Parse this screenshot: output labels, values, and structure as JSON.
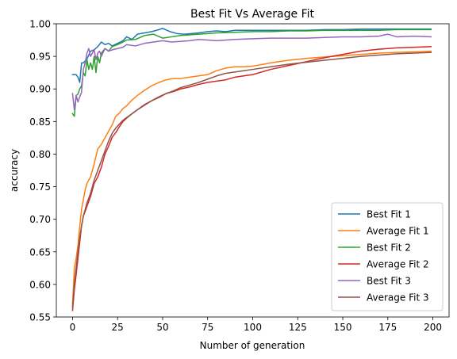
{
  "chart_data": {
    "type": "line",
    "title": "Best Fit Vs Average Fit",
    "xlabel": "Number of generation",
    "ylabel": "accuracy",
    "xlim": [
      -9,
      209
    ],
    "ylim": [
      0.55,
      1.0
    ],
    "xticks": [
      0,
      25,
      50,
      75,
      100,
      125,
      150,
      175,
      200
    ],
    "xtick_labels": [
      "0",
      "25",
      "50",
      "75",
      "100",
      "125",
      "150",
      "175",
      "200"
    ],
    "yticks": [
      0.55,
      0.6,
      0.65,
      0.7,
      0.75,
      0.8,
      0.85,
      0.9,
      0.95,
      1.0
    ],
    "ytick_labels": [
      "0.55",
      "0.60",
      "0.65",
      "0.70",
      "0.75",
      "0.80",
      "0.85",
      "0.90",
      "0.95",
      "1.00"
    ],
    "grid": false,
    "legend_position": "lower-right",
    "series": [
      {
        "name": "Best Fit 1",
        "color": "#1f77b4",
        "x": [
          0,
          1,
          2,
          3,
          4,
          5,
          6,
          8,
          10,
          12,
          14,
          16,
          18,
          20,
          22,
          25,
          28,
          30,
          33,
          36,
          40,
          44,
          48,
          50,
          54,
          58,
          62,
          66,
          70,
          75,
          80,
          85,
          90,
          100,
          110,
          120,
          130,
          140,
          150,
          160,
          170,
          180,
          190,
          199
        ],
        "y": [
          0.922,
          0.922,
          0.922,
          0.918,
          0.91,
          0.94,
          0.94,
          0.946,
          0.958,
          0.96,
          0.965,
          0.972,
          0.968,
          0.97,
          0.966,
          0.97,
          0.974,
          0.98,
          0.976,
          0.984,
          0.986,
          0.988,
          0.991,
          0.993,
          0.988,
          0.985,
          0.984,
          0.985,
          0.986,
          0.988,
          0.989,
          0.988,
          0.99,
          0.99,
          0.99,
          0.99,
          0.99,
          0.991,
          0.991,
          0.992,
          0.992,
          0.992,
          0.992,
          0.992
        ]
      },
      {
        "name": "Average Fit 1",
        "color": "#ff7f0e",
        "x": [
          0,
          1,
          2,
          3,
          4,
          5,
          6,
          7,
          8,
          10,
          12,
          14,
          16,
          18,
          20,
          22,
          24,
          26,
          28,
          30,
          33,
          36,
          40,
          44,
          48,
          52,
          56,
          60,
          65,
          70,
          75,
          80,
          85,
          90,
          95,
          100,
          110,
          120,
          130,
          140,
          150,
          160,
          170,
          180,
          190,
          199
        ],
        "y": [
          0.57,
          0.625,
          0.64,
          0.66,
          0.69,
          0.715,
          0.73,
          0.745,
          0.755,
          0.765,
          0.785,
          0.808,
          0.815,
          0.825,
          0.835,
          0.845,
          0.858,
          0.863,
          0.87,
          0.874,
          0.883,
          0.89,
          0.898,
          0.905,
          0.91,
          0.914,
          0.916,
          0.916,
          0.918,
          0.92,
          0.922,
          0.928,
          0.932,
          0.934,
          0.934,
          0.935,
          0.94,
          0.944,
          0.947,
          0.949,
          0.951,
          0.953,
          0.955,
          0.956,
          0.957,
          0.958
        ]
      },
      {
        "name": "Best Fit 2",
        "color": "#2ca02c",
        "x": [
          0,
          1,
          2,
          3,
          4,
          5,
          6,
          7,
          8,
          9,
          10,
          11,
          12,
          13,
          14,
          15,
          16,
          18,
          20,
          22,
          25,
          28,
          30,
          35,
          40,
          45,
          50,
          55,
          60,
          65,
          70,
          75,
          80,
          90,
          100,
          110,
          120,
          130,
          140,
          150,
          160,
          170,
          180,
          190,
          199
        ],
        "y": [
          0.862,
          0.858,
          0.89,
          0.892,
          0.9,
          0.905,
          0.925,
          0.92,
          0.945,
          0.93,
          0.94,
          0.93,
          0.95,
          0.925,
          0.95,
          0.94,
          0.955,
          0.962,
          0.958,
          0.965,
          0.968,
          0.972,
          0.975,
          0.976,
          0.982,
          0.984,
          0.978,
          0.98,
          0.982,
          0.983,
          0.984,
          0.985,
          0.986,
          0.987,
          0.988,
          0.988,
          0.989,
          0.989,
          0.99,
          0.99,
          0.99,
          0.99,
          0.991,
          0.991,
          0.991
        ]
      },
      {
        "name": "Average Fit 2",
        "color": "#d62728",
        "x": [
          0,
          1,
          2,
          3,
          4,
          5,
          6,
          7,
          8,
          10,
          12,
          14,
          16,
          18,
          20,
          22,
          24,
          26,
          28,
          30,
          33,
          36,
          40,
          44,
          48,
          52,
          56,
          60,
          65,
          70,
          75,
          80,
          85,
          90,
          95,
          100,
          110,
          120,
          130,
          140,
          150,
          160,
          170,
          180,
          190,
          199
        ],
        "y": [
          0.56,
          0.592,
          0.615,
          0.64,
          0.665,
          0.69,
          0.705,
          0.712,
          0.72,
          0.735,
          0.755,
          0.765,
          0.78,
          0.8,
          0.812,
          0.826,
          0.833,
          0.842,
          0.85,
          0.855,
          0.862,
          0.868,
          0.876,
          0.882,
          0.887,
          0.893,
          0.896,
          0.9,
          0.903,
          0.907,
          0.91,
          0.912,
          0.914,
          0.918,
          0.92,
          0.922,
          0.93,
          0.936,
          0.942,
          0.948,
          0.953,
          0.958,
          0.961,
          0.963,
          0.964,
          0.965
        ]
      },
      {
        "name": "Best Fit 3",
        "color": "#9467bd",
        "x": [
          0,
          1,
          2,
          3,
          4,
          5,
          6,
          7,
          8,
          9,
          10,
          11,
          12,
          13,
          14,
          15,
          16,
          18,
          20,
          22,
          25,
          28,
          30,
          35,
          40,
          45,
          50,
          55,
          60,
          65,
          70,
          75,
          80,
          90,
          100,
          110,
          120,
          130,
          140,
          150,
          160,
          170,
          175,
          180,
          190,
          199
        ],
        "y": [
          0.893,
          0.868,
          0.89,
          0.88,
          0.888,
          0.895,
          0.93,
          0.94,
          0.955,
          0.962,
          0.95,
          0.955,
          0.96,
          0.945,
          0.955,
          0.958,
          0.95,
          0.962,
          0.958,
          0.96,
          0.962,
          0.964,
          0.968,
          0.966,
          0.97,
          0.972,
          0.974,
          0.972,
          0.973,
          0.974,
          0.976,
          0.975,
          0.974,
          0.976,
          0.977,
          0.978,
          0.978,
          0.978,
          0.979,
          0.98,
          0.98,
          0.981,
          0.984,
          0.98,
          0.981,
          0.98
        ]
      },
      {
        "name": "Average Fit 3",
        "color": "#8c564b",
        "x": [
          0,
          1,
          2,
          3,
          4,
          5,
          6,
          7,
          8,
          10,
          12,
          14,
          16,
          18,
          20,
          22,
          24,
          26,
          28,
          30,
          33,
          36,
          40,
          44,
          48,
          52,
          56,
          60,
          65,
          70,
          75,
          80,
          85,
          90,
          95,
          100,
          110,
          120,
          130,
          140,
          150,
          160,
          170,
          180,
          190,
          199
        ],
        "y": [
          0.565,
          0.6,
          0.625,
          0.65,
          0.672,
          0.69,
          0.705,
          0.715,
          0.725,
          0.74,
          0.76,
          0.775,
          0.79,
          0.805,
          0.82,
          0.832,
          0.84,
          0.846,
          0.852,
          0.856,
          0.862,
          0.868,
          0.875,
          0.882,
          0.888,
          0.893,
          0.897,
          0.902,
          0.906,
          0.91,
          0.915,
          0.92,
          0.924,
          0.926,
          0.928,
          0.93,
          0.934,
          0.938,
          0.941,
          0.944,
          0.947,
          0.95,
          0.952,
          0.954,
          0.955,
          0.956
        ]
      }
    ]
  }
}
